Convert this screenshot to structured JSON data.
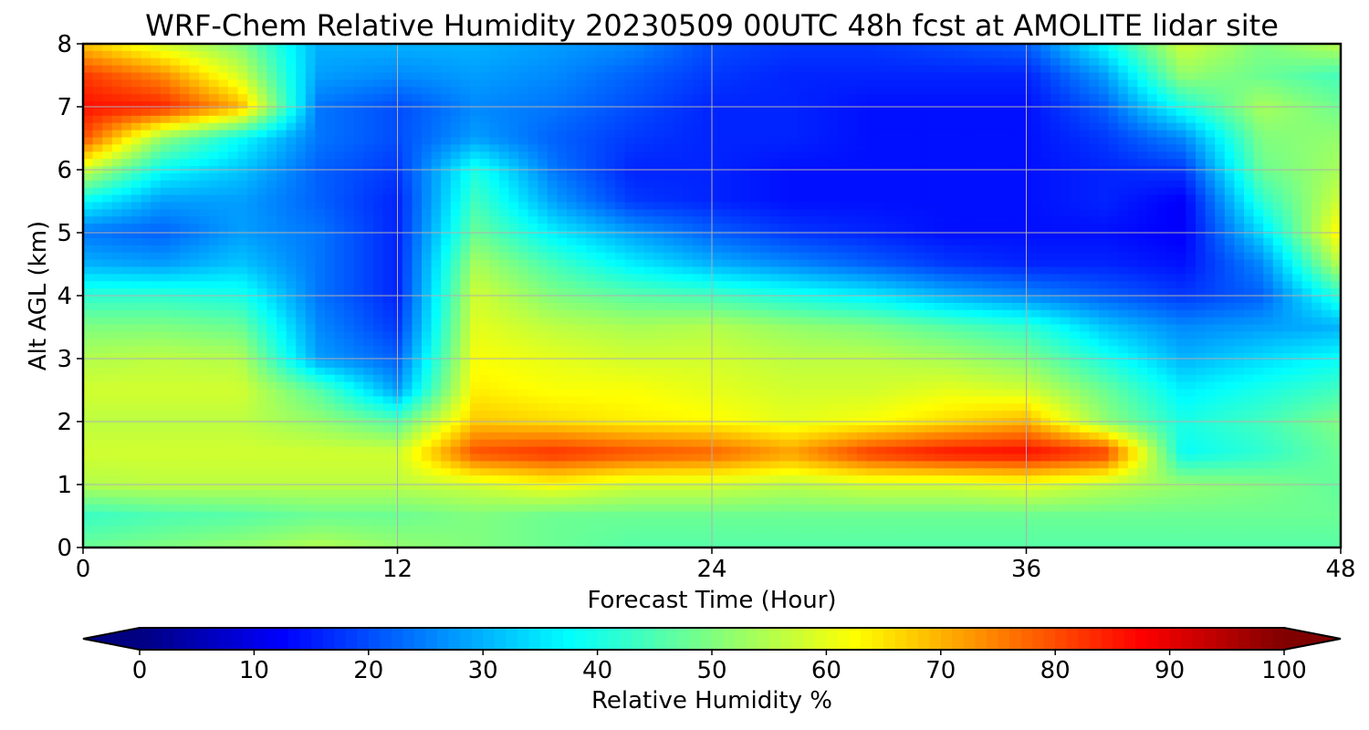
{
  "chart_data": {
    "type": "heatmap",
    "title": "WRF-Chem Relative Humidity 20230509 00UTC 48h fcst at AMOLITE lidar site",
    "xlabel": "Forecast Time (Hour)",
    "ylabel": "Alt AGL (km)",
    "xlim": [
      0,
      48
    ],
    "ylim": [
      0,
      8
    ],
    "x_ticks": [
      0,
      12,
      24,
      36,
      48
    ],
    "y_ticks": [
      0,
      1,
      2,
      3,
      4,
      5,
      6,
      7,
      8
    ],
    "grid": true,
    "x": [
      0,
      3,
      6,
      9,
      12,
      15,
      18,
      21,
      24,
      27,
      30,
      33,
      36,
      39,
      42,
      45,
      48
    ],
    "y": [
      0,
      0.5,
      1,
      1.5,
      2,
      2.5,
      3,
      3.5,
      4,
      4.5,
      5,
      5.5,
      6,
      6.5,
      7,
      7.5,
      8
    ],
    "z": [
      [
        48,
        50,
        52,
        55,
        52,
        50,
        48,
        46,
        46,
        46,
        46,
        46,
        46,
        46,
        46,
        46,
        46
      ],
      [
        43,
        45,
        46,
        48,
        48,
        50,
        48,
        48,
        48,
        48,
        48,
        48,
        48,
        48,
        48,
        48,
        48
      ],
      [
        55,
        56,
        56,
        56,
        56,
        58,
        62,
        58,
        58,
        56,
        58,
        58,
        60,
        56,
        52,
        50,
        47
      ],
      [
        58,
        58,
        58,
        58,
        58,
        80,
        83,
        80,
        78,
        72,
        82,
        86,
        87,
        82,
        38,
        42,
        48
      ],
      [
        56,
        56,
        56,
        52,
        46,
        68,
        66,
        64,
        63,
        60,
        62,
        66,
        70,
        52,
        40,
        44,
        50
      ],
      [
        58,
        58,
        58,
        46,
        28,
        64,
        62,
        62,
        60,
        58,
        58,
        60,
        58,
        48,
        36,
        40,
        44
      ],
      [
        55,
        56,
        55,
        28,
        22,
        62,
        60,
        58,
        58,
        56,
        56,
        54,
        50,
        40,
        30,
        34,
        38
      ],
      [
        50,
        50,
        48,
        26,
        18,
        60,
        56,
        54,
        55,
        52,
        50,
        46,
        42,
        32,
        26,
        28,
        30
      ],
      [
        42,
        42,
        40,
        24,
        16,
        58,
        50,
        46,
        44,
        40,
        36,
        30,
        26,
        22,
        18,
        22,
        42
      ],
      [
        30,
        28,
        32,
        24,
        16,
        54,
        44,
        36,
        30,
        26,
        22,
        18,
        16,
        16,
        14,
        26,
        56
      ],
      [
        24,
        22,
        28,
        24,
        16,
        48,
        36,
        28,
        22,
        18,
        16,
        14,
        14,
        14,
        12,
        34,
        64
      ],
      [
        38,
        28,
        28,
        22,
        16,
        44,
        28,
        18,
        16,
        14,
        14,
        14,
        14,
        16,
        12,
        42,
        58
      ],
      [
        58,
        38,
        32,
        22,
        18,
        40,
        24,
        16,
        16,
        14,
        14,
        14,
        14,
        16,
        18,
        48,
        54
      ],
      [
        80,
        52,
        38,
        24,
        20,
        28,
        22,
        18,
        16,
        16,
        14,
        14,
        14,
        18,
        26,
        50,
        52
      ],
      [
        86,
        84,
        70,
        24,
        20,
        26,
        24,
        20,
        16,
        16,
        14,
        14,
        14,
        22,
        40,
        54,
        48
      ],
      [
        82,
        74,
        58,
        28,
        26,
        28,
        26,
        22,
        18,
        16,
        16,
        16,
        16,
        28,
        52,
        48,
        44
      ],
      [
        68,
        58,
        50,
        30,
        30,
        30,
        28,
        26,
        20,
        18,
        18,
        20,
        22,
        38,
        58,
        50,
        56
      ]
    ],
    "colorbar": {
      "label": "Relative Humidity %",
      "range": [
        0,
        100
      ],
      "ticks": [
        0,
        10,
        20,
        30,
        40,
        50,
        60,
        70,
        80,
        90,
        100
      ],
      "colormap": "jet",
      "extend": "both"
    }
  }
}
